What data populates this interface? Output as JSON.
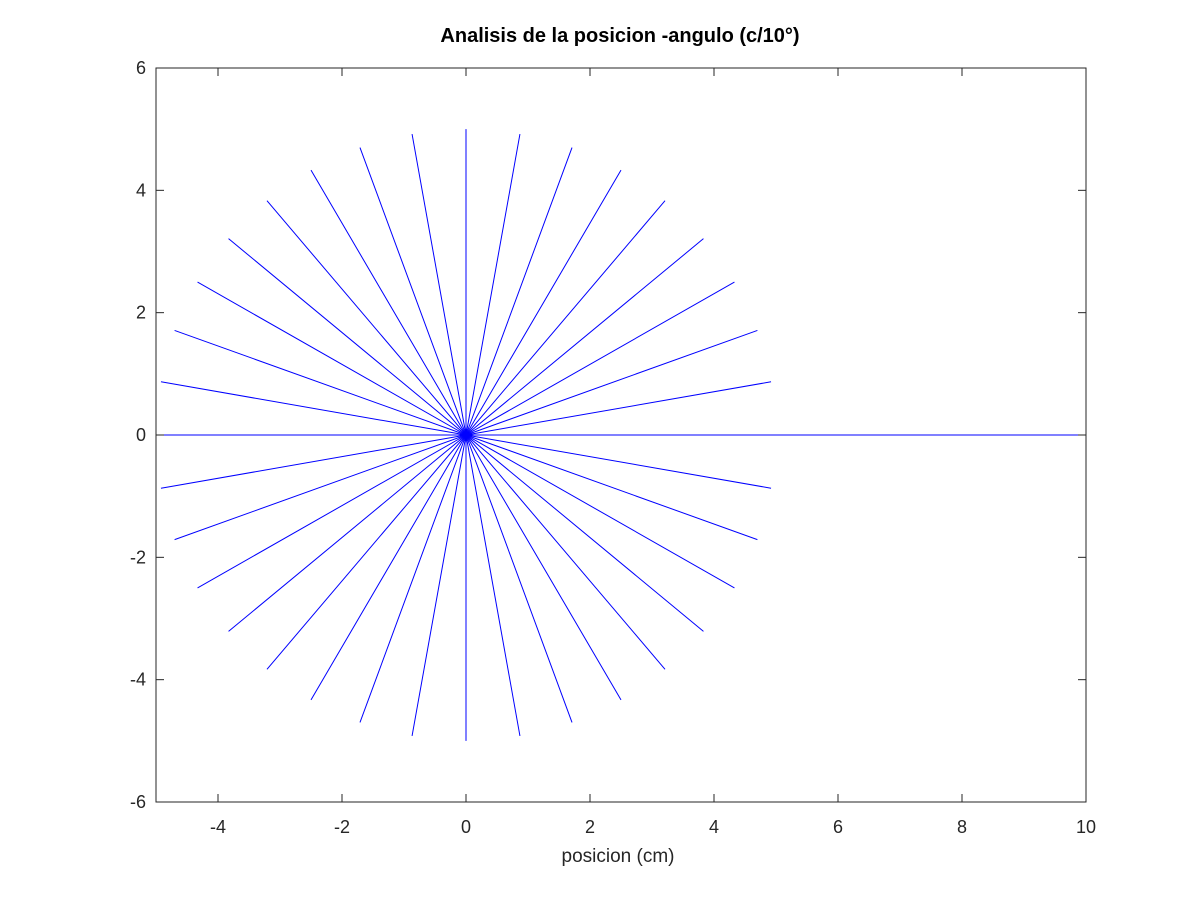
{
  "chart_data": {
    "type": "line",
    "title": "Analisis de la posicion -angulo (c/10°)",
    "xlabel": "posicion (cm)",
    "ylabel": "",
    "xlim": [
      -5,
      10
    ],
    "ylim": [
      -6,
      6
    ],
    "x_ticks": [
      -4,
      -2,
      0,
      2,
      4,
      6,
      8,
      10
    ],
    "y_ticks": [
      -6,
      -4,
      -2,
      0,
      2,
      4,
      6
    ],
    "x_tick_labels": [
      "-4",
      "-2",
      "0",
      "2",
      "4",
      "6",
      "8",
      "10"
    ],
    "y_tick_labels": [
      "-6",
      "-4",
      "-2",
      "0",
      "2",
      "4",
      "6"
    ],
    "grid": false,
    "line_color": "#0000ff",
    "series": [
      {
        "x": [
          -5.0,
          0.0,
          10.0
        ],
        "y": [
          0.0,
          0.0,
          0.0
        ]
      },
      {
        "x": [
          -4.92,
          0.0,
          9.9
        ],
        "y": [
          0.87,
          0.0,
          0.0
        ]
      },
      {
        "x": [
          -4.7,
          0.0,
          9.63
        ],
        "y": [
          1.71,
          0.0,
          0.0
        ]
      },
      {
        "x": [
          -4.33,
          0.0,
          9.18
        ],
        "y": [
          2.5,
          0.0,
          0.0
        ]
      },
      {
        "x": [
          -3.83,
          0.0,
          8.62
        ],
        "y": [
          3.21,
          0.0,
          0.0
        ]
      },
      {
        "x": [
          -3.21,
          0.0,
          7.95
        ],
        "y": [
          3.83,
          0.0,
          0.0
        ]
      },
      {
        "x": [
          -2.5,
          0.0,
          7.24
        ],
        "y": [
          4.33,
          0.0,
          0.0
        ]
      },
      {
        "x": [
          -1.71,
          0.0,
          6.5
        ],
        "y": [
          4.7,
          0.0,
          0.0
        ]
      },
      {
        "x": [
          -0.87,
          0.0,
          5.77
        ],
        "y": [
          4.92,
          0.0,
          0.0
        ]
      },
      {
        "x": [
          0.0,
          0.0,
          5.0
        ],
        "y": [
          5.0,
          0.0,
          0.0
        ]
      },
      {
        "x": [
          0.87,
          0.0,
          4.36
        ],
        "y": [
          4.92,
          0.0,
          0.0
        ]
      },
      {
        "x": [
          1.71,
          0.0,
          3.72
        ],
        "y": [
          4.7,
          0.0,
          0.0
        ]
      },
      {
        "x": [
          2.5,
          0.0,
          3.12
        ],
        "y": [
          4.33,
          0.0,
          0.0
        ]
      },
      {
        "x": [
          3.21,
          0.0,
          2.6
        ],
        "y": [
          3.83,
          0.0,
          0.0
        ]
      },
      {
        "x": [
          3.83,
          0.0,
          2.13
        ],
        "y": [
          3.21,
          0.0,
          0.0
        ]
      },
      {
        "x": [
          4.33,
          0.0,
          1.73
        ],
        "y": [
          2.5,
          0.0,
          0.0
        ]
      },
      {
        "x": [
          4.7,
          0.0,
          1.42
        ],
        "y": [
          1.71,
          0.0,
          0.0
        ]
      },
      {
        "x": [
          4.92,
          0.0,
          1.23
        ],
        "y": [
          0.87,
          0.0,
          0.0
        ]
      },
      {
        "x": [
          5.0,
          0.0,
          1.15
        ],
        "y": [
          0.0,
          0.0,
          0.0
        ]
      },
      {
        "x": [
          4.92,
          0.0,
          1.23
        ],
        "y": [
          -0.87,
          0.0,
          0.0
        ]
      },
      {
        "x": [
          4.7,
          0.0,
          1.42
        ],
        "y": [
          -1.71,
          0.0,
          0.0
        ]
      },
      {
        "x": [
          4.33,
          0.0,
          1.73
        ],
        "y": [
          -2.5,
          0.0,
          0.0
        ]
      },
      {
        "x": [
          3.83,
          0.0,
          2.13
        ],
        "y": [
          -3.21,
          0.0,
          0.0
        ]
      },
      {
        "x": [
          3.21,
          0.0,
          2.6
        ],
        "y": [
          -3.83,
          0.0,
          0.0
        ]
      },
      {
        "x": [
          2.5,
          0.0,
          3.12
        ],
        "y": [
          -4.33,
          0.0,
          0.0
        ]
      },
      {
        "x": [
          1.71,
          0.0,
          3.72
        ],
        "y": [
          -4.7,
          0.0,
          0.0
        ]
      },
      {
        "x": [
          0.87,
          0.0,
          4.36
        ],
        "y": [
          -4.92,
          0.0,
          0.0
        ]
      },
      {
        "x": [
          0.0,
          0.0,
          5.0
        ],
        "y": [
          -5.0,
          0.0,
          0.0
        ]
      },
      {
        "x": [
          -0.87,
          0.0,
          5.77
        ],
        "y": [
          -4.92,
          0.0,
          0.0
        ]
      },
      {
        "x": [
          -1.71,
          0.0,
          6.5
        ],
        "y": [
          -4.7,
          0.0,
          0.0
        ]
      },
      {
        "x": [
          -2.5,
          0.0,
          7.24
        ],
        "y": [
          -4.33,
          0.0,
          0.0
        ]
      },
      {
        "x": [
          -3.21,
          0.0,
          7.95
        ],
        "y": [
          -3.83,
          0.0,
          0.0
        ]
      },
      {
        "x": [
          -3.83,
          0.0,
          8.62
        ],
        "y": [
          -3.21,
          0.0,
          0.0
        ]
      },
      {
        "x": [
          -4.33,
          0.0,
          9.18
        ],
        "y": [
          -2.5,
          0.0,
          0.0
        ]
      },
      {
        "x": [
          -4.7,
          0.0,
          9.63
        ],
        "y": [
          -1.71,
          0.0,
          0.0
        ]
      },
      {
        "x": [
          -4.92,
          0.0,
          9.9
        ],
        "y": [
          -0.87,
          0.0,
          0.0
        ]
      }
    ]
  }
}
